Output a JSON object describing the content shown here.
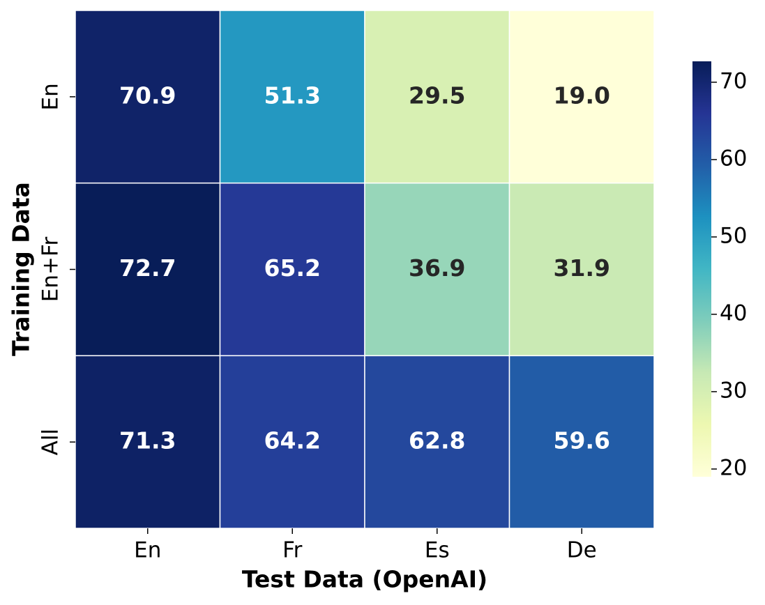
{
  "chart_data": {
    "type": "heatmap",
    "xlabel": "Test Data (OpenAI)",
    "ylabel": "Training Data",
    "x_categories": [
      "En",
      "Fr",
      "Es",
      "De"
    ],
    "y_categories": [
      "En",
      "En+Fr",
      "All"
    ],
    "values": [
      [
        70.9,
        51.3,
        29.5,
        19.0
      ],
      [
        72.7,
        65.2,
        36.9,
        31.9
      ],
      [
        71.3,
        64.2,
        62.8,
        59.6
      ]
    ],
    "value_labels": [
      [
        "70.9",
        "51.3",
        "29.5",
        "19.0"
      ],
      [
        "72.7",
        "65.2",
        "36.9",
        "31.9"
      ],
      [
        "71.3",
        "64.2",
        "62.8",
        "59.6"
      ]
    ],
    "colorscale": [
      "#ffffd9",
      "#edf8b1",
      "#c7e9b4",
      "#7fcdbb",
      "#41b6c4",
      "#1d91c0",
      "#225ea8",
      "#253494",
      "#081d58"
    ],
    "zlim": [
      19.0,
      72.7
    ],
    "zticks": [
      20,
      30,
      40,
      50,
      60,
      70
    ]
  }
}
